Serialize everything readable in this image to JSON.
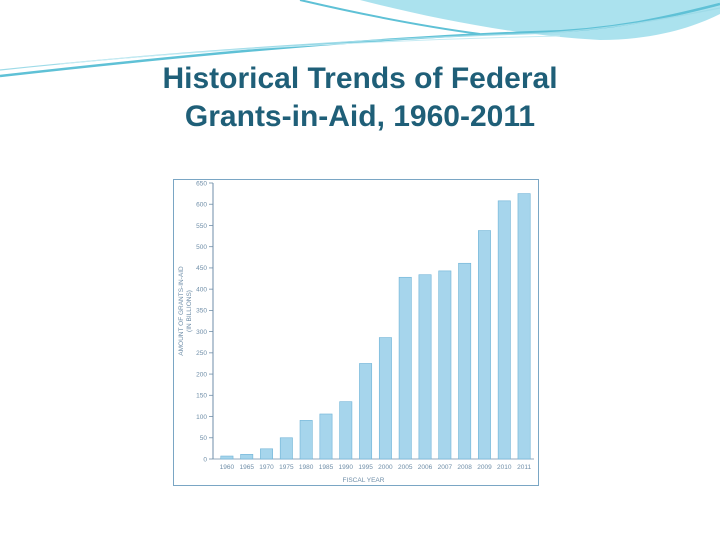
{
  "slide": {
    "title_line1": "Historical Trends of Federal",
    "title_line2": "Grants-in-Aid, 1960-2011"
  },
  "colors": {
    "title": "#1f5f78",
    "bar_fill": "#a6d5ec",
    "bar_stroke": "#6fb3d6",
    "axis": "#6f8ea8",
    "header_wave": "#5fc1d6"
  },
  "chart_data": {
    "type": "bar",
    "categories": [
      "1960",
      "1965",
      "1970",
      "1975",
      "1980",
      "1985",
      "1990",
      "1995",
      "2000",
      "2005",
      "2006",
      "2007",
      "2008",
      "2009",
      "2010",
      "2011"
    ],
    "series": [
      {
        "values": [
          7,
          11,
          24,
          50,
          91,
          106,
          135,
          225,
          286,
          428,
          434,
          443,
          461,
          538,
          608,
          625
        ]
      }
    ],
    "yticks": [
      0,
      50,
      100,
      150,
      200,
      250,
      300,
      350,
      400,
      450,
      500,
      550,
      600,
      650
    ],
    "ylim": [
      0,
      650
    ],
    "xlabel": "FISCAL YEAR",
    "ylabel": "AMOUNT OF GRANTS-IN-AID",
    "ylabel_units": "(IN BILLIONS)",
    "grid": false,
    "legend": "none"
  }
}
